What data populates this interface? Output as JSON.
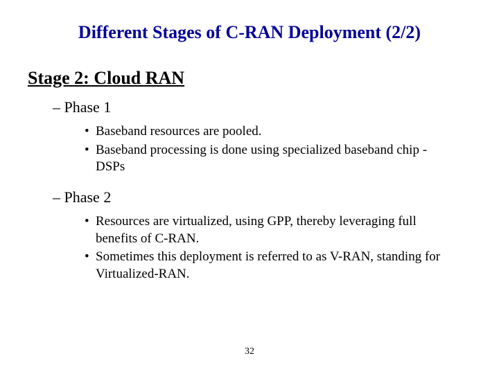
{
  "title": "Different Stages of C-RAN Deployment (2/2)",
  "title_color": "#000099",
  "stage_title": "Stage 2: Cloud RAN",
  "phases": [
    {
      "label": "– Phase 1",
      "bullets": [
        "Baseband resources are pooled.",
        "Baseband processing is done using specialized baseband chip - DSPs"
      ]
    },
    {
      "label": "– Phase 2",
      "bullets": [
        "Resources are virtualized, using GPP, thereby leveraging full benefits of C-RAN.",
        "Sometimes this deployment is referred to as V-RAN, standing for Virtualized-RAN."
      ]
    }
  ],
  "page_number": "32",
  "background_color": "#ffffff",
  "text_color": "#000000",
  "title_fontsize": 26,
  "stage_fontsize": 26,
  "phase_fontsize": 22,
  "bullet_fontsize": 19,
  "pagenum_fontsize": 14
}
